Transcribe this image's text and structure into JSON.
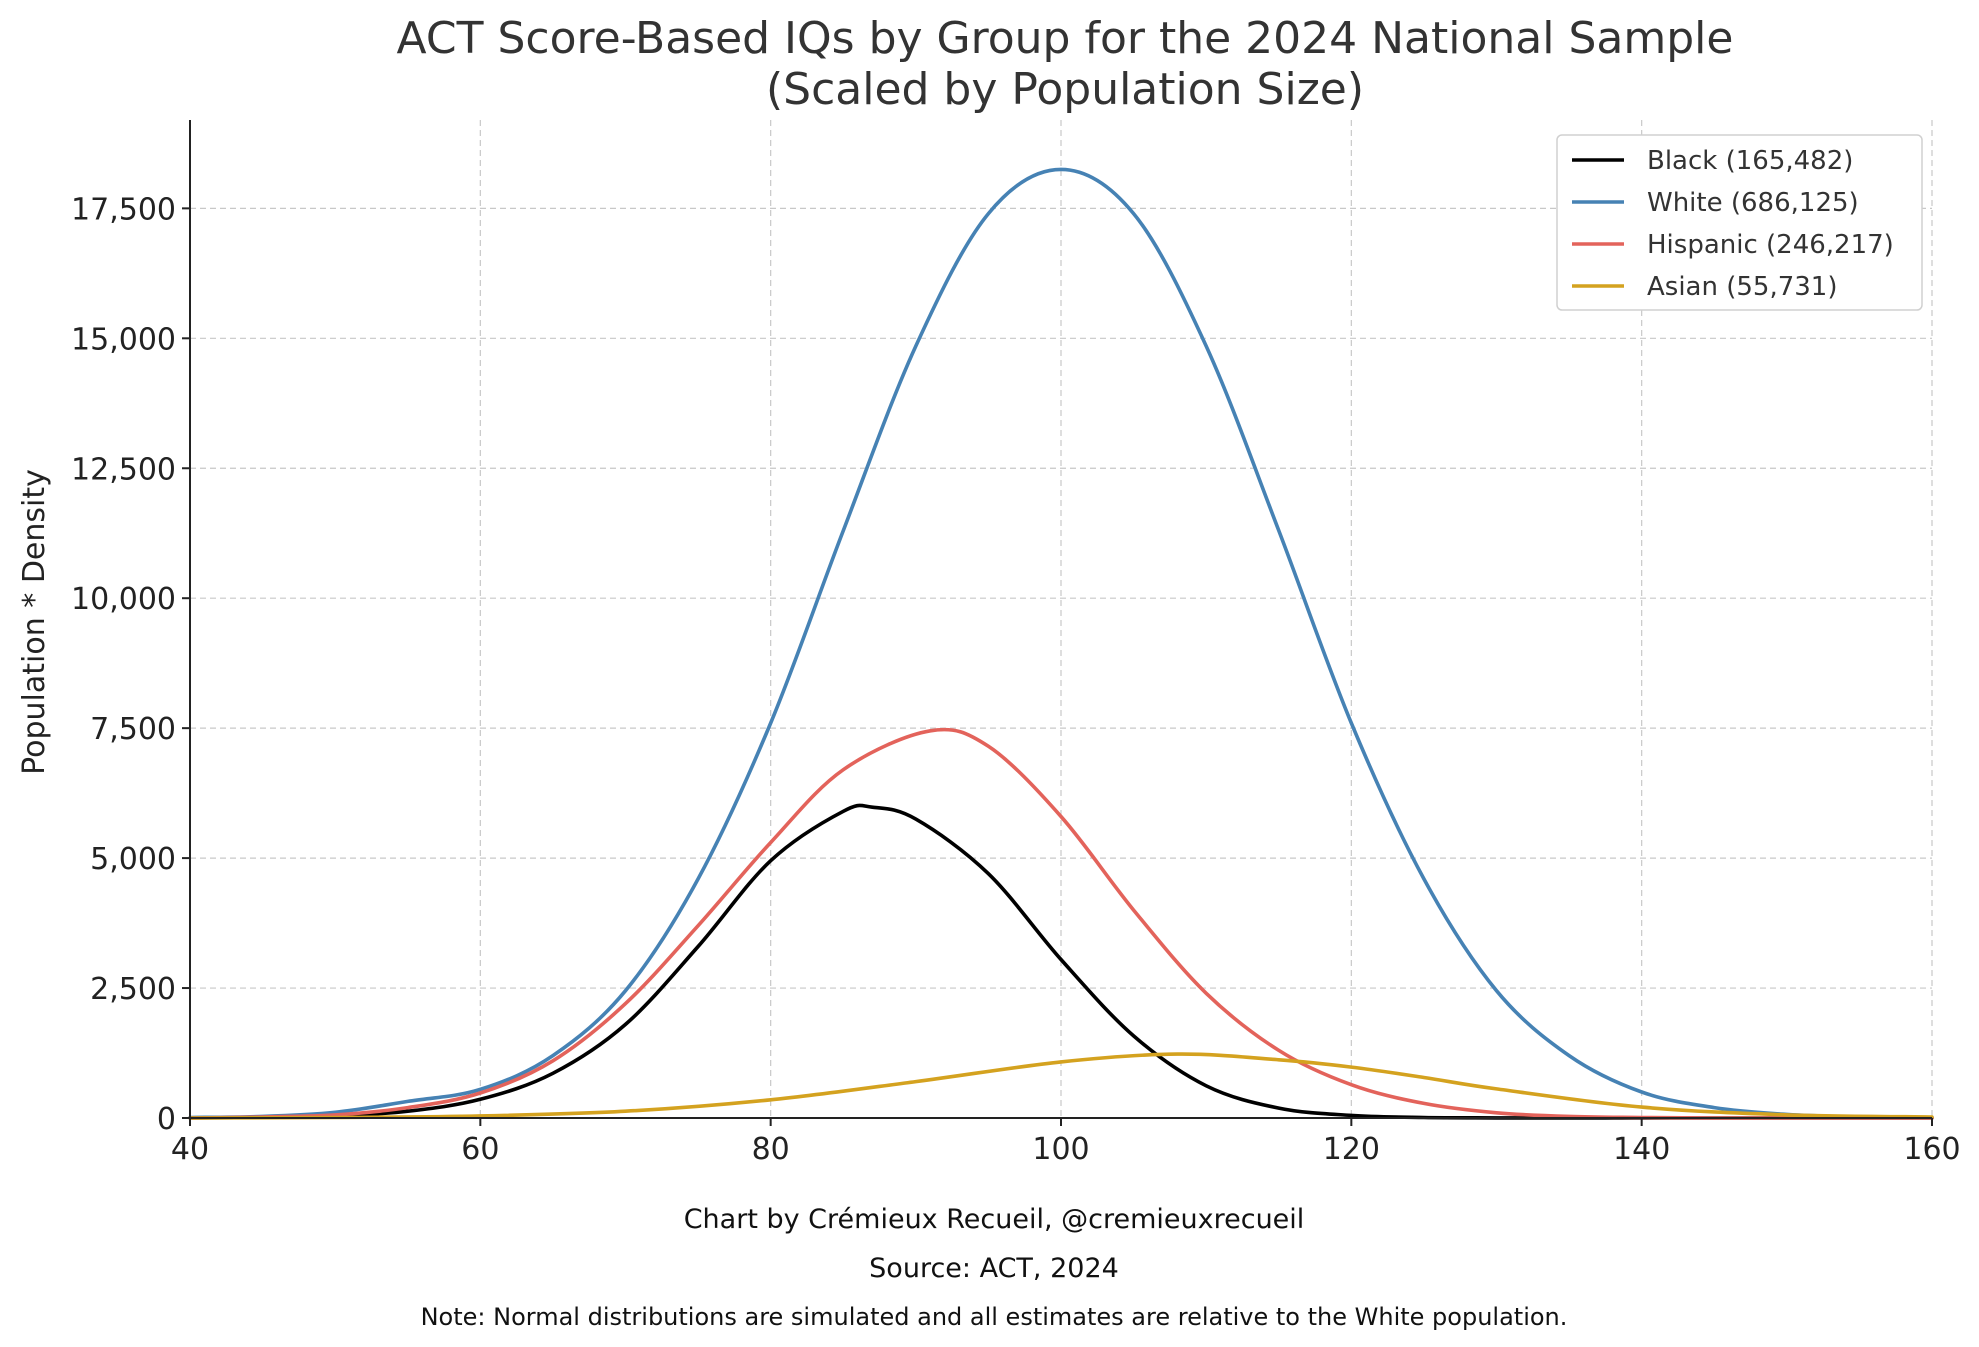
{
  "chart_data": {
    "type": "line",
    "title": "ACT Score-Based IQs by Group for the 2024 National Sample",
    "subtitle": "(Scaled by Population Size)",
    "xlabel": "",
    "ylabel": "Population * Density",
    "xlim": [
      40,
      160
    ],
    "ylim": [
      0,
      19200
    ],
    "x_ticks": [
      "40",
      "60",
      "80",
      "100",
      "120",
      "140",
      "160"
    ],
    "x_tick_values": [
      40,
      60,
      80,
      100,
      120,
      140,
      160
    ],
    "y_ticks": [
      "0",
      "2,500",
      "5,000",
      "7,500",
      "10,000",
      "12,500",
      "15,000",
      "17,500"
    ],
    "y_tick_values": [
      0,
      2500,
      5000,
      7500,
      10000,
      12500,
      15000,
      17500
    ],
    "grid": true,
    "legend_position": "top-right",
    "series": [
      {
        "name": "Black (165,482)",
        "color": "#000000",
        "x": [
          40,
          45,
          50,
          55,
          60,
          65,
          70,
          75,
          80,
          85,
          87,
          90,
          95,
          100,
          105,
          110,
          115,
          120,
          125,
          130,
          135,
          140,
          145,
          150,
          155,
          160
        ],
        "values": [
          0,
          10,
          40,
          130,
          360,
          860,
          1800,
          3300,
          4950,
          5900,
          5980,
          5750,
          4700,
          3050,
          1580,
          620,
          190,
          50,
          10,
          2,
          0,
          0,
          0,
          0,
          0,
          0
        ]
      },
      {
        "name": "White (686,125)",
        "color": "#4682b4",
        "x": [
          40,
          45,
          50,
          55,
          60,
          65,
          70,
          75,
          80,
          85,
          90,
          95,
          100,
          105,
          110,
          115,
          120,
          125,
          130,
          135,
          140,
          145,
          150,
          155,
          160
        ],
        "values": [
          10,
          30,
          110,
          320,
          550,
          1200,
          2450,
          4600,
          7600,
          11300,
          14850,
          17400,
          18250,
          17400,
          14850,
          11300,
          7600,
          4600,
          2450,
          1200,
          500,
          200,
          70,
          20,
          5
        ]
      },
      {
        "name": "Hispanic (246,217)",
        "color": "#e3635b",
        "x": [
          40,
          45,
          50,
          55,
          60,
          65,
          70,
          75,
          80,
          85,
          91,
          95,
          100,
          105,
          110,
          115,
          120,
          125,
          130,
          135,
          140,
          145,
          150,
          155,
          160
        ],
        "values": [
          0,
          20,
          60,
          200,
          480,
          1100,
          2200,
          3700,
          5300,
          6700,
          7450,
          7150,
          5800,
          4000,
          2400,
          1300,
          640,
          280,
          100,
          30,
          10,
          0,
          0,
          0,
          0
        ]
      },
      {
        "name": "Asian (55,731)",
        "color": "#d4a21f",
        "x": [
          40,
          50,
          60,
          70,
          80,
          90,
          100,
          108,
          115,
          120,
          125,
          130,
          140,
          150,
          160
        ],
        "values": [
          0,
          10,
          40,
          130,
          350,
          700,
          1080,
          1230,
          1120,
          980,
          780,
          560,
          210,
          60,
          20
        ]
      }
    ]
  },
  "footer": {
    "credit": "Chart by Crémieux Recueil, @cremieuxrecueil",
    "source": "Source: ACT, 2024",
    "note": "Note: Normal distributions are simulated and all estimates are relative to the White population."
  }
}
